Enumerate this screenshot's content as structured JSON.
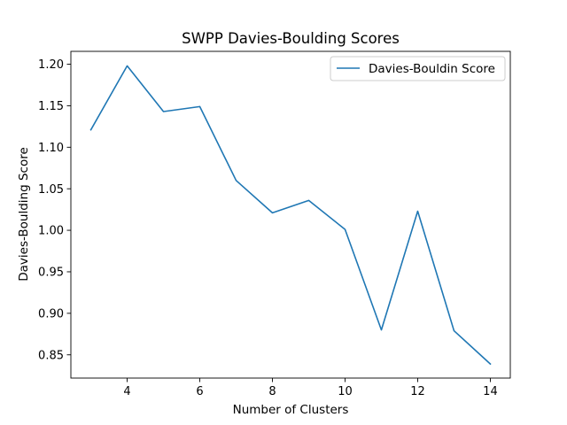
{
  "chart_data": {
    "type": "line",
    "title": "SWPP Davies-Boulding Scores",
    "xlabel": "Number of Clusters",
    "ylabel": "Davies-Boulding Score",
    "xlim": [
      2.45,
      14.55
    ],
    "ylim": [
      0.822,
      1.2155
    ],
    "x_ticks": [
      4,
      6,
      8,
      10,
      12,
      14
    ],
    "y_ticks": [
      0.85,
      0.9,
      0.95,
      1.0,
      1.05,
      1.1,
      1.15,
      1.2
    ],
    "y_tick_labels": [
      "0.85",
      "0.90",
      "0.95",
      "1.00",
      "1.05",
      "1.10",
      "1.15",
      "1.20"
    ],
    "grid": false,
    "legend_position": "top-right",
    "series": [
      {
        "name": "Davies-Bouldin Score",
        "color": "#1f77b4",
        "x": [
          3,
          4,
          5,
          6,
          7,
          8,
          9,
          10,
          11,
          12,
          13,
          14
        ],
        "values": [
          1.121,
          1.198,
          1.143,
          1.149,
          1.06,
          1.021,
          1.036,
          1.001,
          0.88,
          1.023,
          0.879,
          0.839
        ]
      }
    ]
  }
}
